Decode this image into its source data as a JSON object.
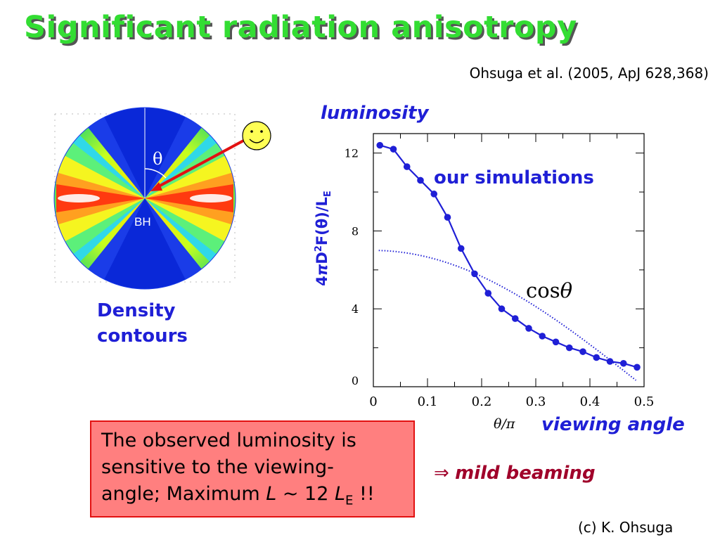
{
  "title": "Significant radiation anisotropy",
  "citation": "Ohsuga et al. (2005, ApJ 628,368)",
  "figure": {
    "bh_label": "BH",
    "theta_symbol": "θ",
    "caption_line1": "Density",
    "caption_line2": "contours"
  },
  "plot": {
    "luminosity_label": "luminosity",
    "sim_label": "our simulations",
    "cos_text": "cos",
    "cos_theta": "θ",
    "ylabel_parts": [
      "4",
      "π",
      "D",
      "2",
      "F(θ)/L",
      "E"
    ],
    "xvar": "θ/π",
    "viewing_angle": "viewing angle"
  },
  "chart_data": {
    "type": "line",
    "xlabel": "θ/π",
    "ylabel": "4πD²F(θ)/L_E",
    "xlim": [
      0,
      0.5
    ],
    "ylim": [
      0,
      13
    ],
    "x_ticks": [
      "0",
      "0.1",
      "0.2",
      "0.3",
      "0.4",
      "0.5"
    ],
    "y_ticks": [
      "0",
      "4",
      "8",
      "12"
    ],
    "grid": false,
    "series": [
      {
        "name": "our simulations",
        "style": "solid-with-markers",
        "color": "#1f1fd6",
        "x": [
          0.012,
          0.037,
          0.062,
          0.087,
          0.112,
          0.137,
          0.162,
          0.187,
          0.212,
          0.237,
          0.262,
          0.287,
          0.312,
          0.337,
          0.362,
          0.387,
          0.412,
          0.437,
          0.462,
          0.487
        ],
        "y": [
          12.4,
          12.2,
          11.3,
          10.6,
          9.9,
          8.7,
          7.1,
          5.8,
          4.8,
          4.0,
          3.5,
          3.0,
          2.6,
          2.3,
          2.0,
          1.8,
          1.5,
          1.3,
          1.2,
          1.0
        ]
      },
      {
        "name": "cos θ",
        "style": "dotted",
        "color": "#1f1fd6",
        "function": "7·cos(πx)"
      }
    ]
  },
  "note": {
    "line1": "The observed luminosity is",
    "line2": "sensitive to the viewing-",
    "line3_pre": "angle; Maximum ",
    "line3_L": "L",
    "line3_mid": " ~ 12 ",
    "line3_L2": "L",
    "line3_sub": "E",
    "line3_post": " !!"
  },
  "beaming": {
    "arrow": "⇒",
    "text": "mild beaming"
  },
  "credit": "(c)  K. Ohsuga",
  "colors": {
    "title_green": "#33dd33",
    "label_blue": "#1f1fd6",
    "note_fill": "#ff7f7f",
    "note_border": "#e21111",
    "beaming_red": "#a0002a"
  }
}
